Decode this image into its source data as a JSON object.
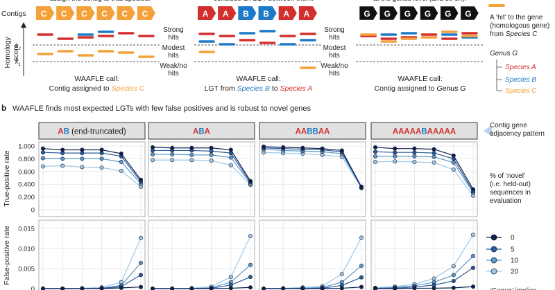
{
  "panel_a": {
    "top_texts": [
      "assign the contig to that species.",
      "conclude an LGT between them.",
      "at the genus level (and so on)."
    ],
    "contigs_label": "Contigs",
    "axis_label_lines": [
      "Homology",
      "score"
    ],
    "k2_label": "k2",
    "k1_label": "k1",
    "hit_levels": [
      "Strong",
      "hits",
      "Modest",
      "hits",
      "Weak/no",
      "hits"
    ],
    "groups": [
      {
        "genes": [
          "C",
          "C",
          "C",
          "C",
          "C",
          "C"
        ],
        "call_title": "WAAFLE call:",
        "call_parts": [
          {
            "text": "Contig assigned to ",
            "style": "plain"
          },
          {
            "text": "Species C",
            "style": "species_c"
          }
        ]
      },
      {
        "genes": [
          "A",
          "A",
          "B",
          "B",
          "A",
          "A"
        ],
        "call_title": "WAAFLE call:",
        "call_parts": [
          {
            "text": "LGT from ",
            "style": "plain"
          },
          {
            "text": "Species B",
            "style": "species_b"
          },
          {
            "text": " to ",
            "style": "plain"
          },
          {
            "text": "Species A",
            "style": "species_a"
          }
        ]
      },
      {
        "genes": [
          "G",
          "G",
          "G",
          "G",
          "G",
          "G"
        ],
        "call_title": "WAAFLE call:",
        "call_parts": [
          {
            "text": "Contig assigned to ",
            "style": "plain"
          },
          {
            "text": "Genus G",
            "style": "genus"
          }
        ]
      }
    ],
    "legend": {
      "hit_text_lines": [
        "A ‘hit’ to the gene",
        "(homologous gene)",
        "from "
      ],
      "hit_text_species": "Species C",
      "genus_title": "Genus G",
      "species": [
        "Species A",
        "Species B",
        "Species C"
      ]
    }
  },
  "panel_b": {
    "letter": "b",
    "title": "WAAFLE finds most expected LGTs with few false positives and is robust to novel genes",
    "adjacency_lines": [
      "Contig gene",
      "adjacency pattern"
    ],
    "novel_legend_lines": [
      "% of ‘novel’",
      "(i.e. held-out)",
      "sequences in",
      "evaluation"
    ],
    "footer_fragment": "‘Genus’ implies",
    "panels": [
      {
        "parts": [
          {
            "text": "A",
            "c": "A"
          },
          {
            "text": "B",
            "c": "B"
          },
          {
            "text": " (end-truncated)",
            "c": "plain"
          }
        ]
      },
      {
        "parts": [
          {
            "text": "A",
            "c": "A"
          },
          {
            "text": "B",
            "c": "B"
          },
          {
            "text": "A",
            "c": "A"
          }
        ]
      },
      {
        "parts": [
          {
            "text": "AA",
            "c": "A"
          },
          {
            "text": "BB",
            "c": "B"
          },
          {
            "text": "AA",
            "c": "A"
          }
        ]
      },
      {
        "parts": [
          {
            "text": "AAAAA",
            "c": "A"
          },
          {
            "text": "B",
            "c": "B"
          },
          {
            "text": "AAAAA",
            "c": "A"
          }
        ]
      }
    ]
  },
  "colors": {
    "species_a": "#d32f2f",
    "species_b": "#1e7ac8",
    "species_c": "#f4a13a",
    "genus": "#000000",
    "series": [
      "#0d1f4f",
      "#2a5a98",
      "#5b97c8",
      "#9cc8e6"
    ]
  },
  "chart_data": [
    {
      "type": "line",
      "ylabel": "True-positive rate",
      "ylim": [
        0,
        1.0
      ],
      "yticks": [
        "0",
        "0.200",
        "0.400",
        "0.600",
        "0.800",
        "1.000"
      ],
      "legend_title": "% of ‘novel’ (i.e. held-out) sequences in evaluation",
      "series_names": [
        "0",
        "5",
        "10",
        "20"
      ],
      "panels": [
        {
          "series": [
            {
              "name": "0",
              "values": [
                0.96,
                0.94,
                0.94,
                0.94,
                0.88,
                0.47
              ]
            },
            {
              "name": "5",
              "values": [
                0.9,
                0.89,
                0.89,
                0.89,
                0.84,
                0.44
              ]
            },
            {
              "name": "10",
              "values": [
                0.81,
                0.8,
                0.8,
                0.8,
                0.75,
                0.41
              ]
            },
            {
              "name": "20",
              "values": [
                0.68,
                0.69,
                0.67,
                0.66,
                0.61,
                0.36
              ]
            }
          ]
        },
        {
          "series": [
            {
              "name": "0",
              "values": [
                0.98,
                0.97,
                0.97,
                0.97,
                0.94,
                0.45
              ]
            },
            {
              "name": "5",
              "values": [
                0.93,
                0.93,
                0.93,
                0.92,
                0.89,
                0.43
              ]
            },
            {
              "name": "10",
              "values": [
                0.87,
                0.87,
                0.86,
                0.86,
                0.82,
                0.41
              ]
            },
            {
              "name": "20",
              "values": [
                0.78,
                0.78,
                0.78,
                0.77,
                0.7,
                0.39
              ]
            }
          ]
        },
        {
          "series": [
            {
              "name": "0",
              "values": [
                0.99,
                0.98,
                0.97,
                0.96,
                0.93,
                0.36
              ]
            },
            {
              "name": "5",
              "values": [
                0.97,
                0.96,
                0.95,
                0.94,
                0.91,
                0.35
              ]
            },
            {
              "name": "10",
              "values": [
                0.95,
                0.93,
                0.92,
                0.91,
                0.88,
                0.35
              ]
            },
            {
              "name": "20",
              "values": [
                0.9,
                0.89,
                0.88,
                0.86,
                0.83,
                0.34
              ]
            }
          ]
        },
        {
          "series": [
            {
              "name": "0",
              "values": [
                0.98,
                0.96,
                0.96,
                0.95,
                0.85,
                0.32
              ]
            },
            {
              "name": "5",
              "values": [
                0.91,
                0.9,
                0.9,
                0.89,
                0.8,
                0.29
              ]
            },
            {
              "name": "10",
              "values": [
                0.84,
                0.84,
                0.84,
                0.83,
                0.74,
                0.27
              ]
            },
            {
              "name": "20",
              "values": [
                0.75,
                0.76,
                0.75,
                0.74,
                0.63,
                0.22
              ]
            }
          ]
        }
      ]
    },
    {
      "type": "line",
      "ylabel": "False-positive rate",
      "ylim": [
        0,
        0.017
      ],
      "yticks": [
        "0",
        "0.005",
        "0.010",
        "0.015"
      ],
      "series_names": [
        "0",
        "5",
        "10",
        "20"
      ],
      "panels": [
        {
          "series": [
            {
              "name": "0",
              "values": [
                0,
                0,
                0,
                0,
                0.0002,
                0.0004
              ]
            },
            {
              "name": "5",
              "values": [
                0,
                0,
                0,
                0.0001,
                0.0005,
                0.0034
              ]
            },
            {
              "name": "10",
              "values": [
                0,
                0,
                0,
                0.0001,
                0.0008,
                0.0064
              ]
            },
            {
              "name": "20",
              "values": [
                0,
                0,
                0.0001,
                0.0003,
                0.0016,
                0.0126
              ]
            }
          ]
        },
        {
          "series": [
            {
              "name": "0",
              "values": [
                0,
                0,
                0,
                0,
                0.0001,
                0.0003
              ]
            },
            {
              "name": "5",
              "values": [
                0,
                0,
                0,
                0.0001,
                0.0009,
                0.0029
              ]
            },
            {
              "name": "10",
              "values": [
                0,
                0,
                0,
                0.0002,
                0.0016,
                0.0059
              ]
            },
            {
              "name": "20",
              "values": [
                0,
                0,
                0.0001,
                0.0005,
                0.0029,
                0.0131
              ]
            }
          ]
        },
        {
          "series": [
            {
              "name": "0",
              "values": [
                0,
                0,
                0,
                0,
                0.0001,
                0.0004
              ]
            },
            {
              "name": "5",
              "values": [
                0,
                0,
                0,
                0.0001,
                0.0008,
                0.0028
              ]
            },
            {
              "name": "10",
              "values": [
                0,
                0,
                0.0001,
                0.0003,
                0.0016,
                0.0057
              ]
            },
            {
              "name": "20",
              "values": [
                0,
                0.0001,
                0.0003,
                0.0006,
                0.0036,
                0.0127
              ]
            }
          ]
        },
        {
          "series": [
            {
              "name": "0",
              "values": [
                0,
                0,
                0.0001,
                0.0001,
                0.0002,
                0.0005
              ]
            },
            {
              "name": "5",
              "values": [
                0,
                0.0001,
                0.0004,
                0.0009,
                0.0019,
                0.0052
              ]
            },
            {
              "name": "10",
              "values": [
                0.0001,
                0.0003,
                0.0007,
                0.0016,
                0.0034,
                0.0081
              ]
            },
            {
              "name": "20",
              "values": [
                0.0002,
                0.0005,
                0.0011,
                0.0025,
                0.0056,
                0.0134
              ]
            }
          ]
        }
      ]
    }
  ]
}
